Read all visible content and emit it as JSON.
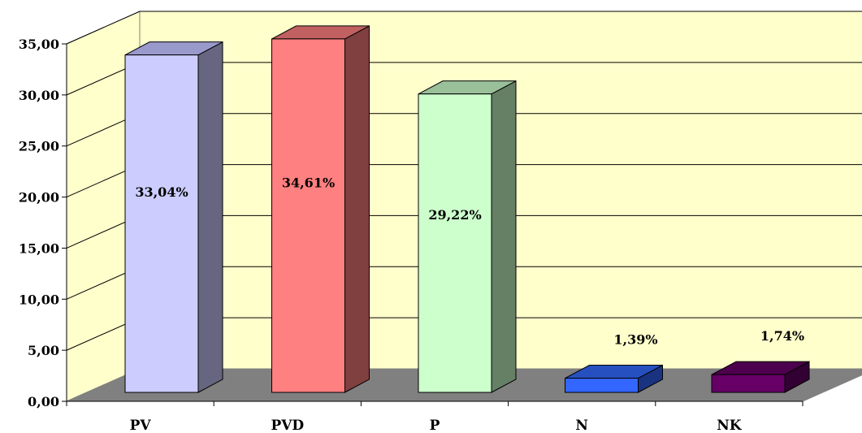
{
  "chart_data": {
    "type": "bar",
    "style": "3d-column",
    "categories": [
      "PV",
      "PVD",
      "P",
      "N",
      "NK"
    ],
    "values": [
      33.04,
      34.61,
      29.22,
      1.39,
      1.74
    ],
    "data_labels": [
      "33,04%",
      "34,61%",
      "29,22%",
      "1,39%",
      "1,74%"
    ],
    "label_inside": [
      true,
      true,
      true,
      false,
      false
    ],
    "ylim": [
      0,
      35
    ],
    "yticks": [
      "0,00",
      "5,00",
      "10,00",
      "15,00",
      "20,00",
      "25,00",
      "30,00",
      "35,00"
    ],
    "grid": true,
    "legend": "none",
    "colors": {
      "wall": "#ffffcc",
      "floor": "#808080",
      "grid": "#000000",
      "bars": [
        {
          "front": "#ccccff",
          "top": "#9999cc",
          "side": "#666680"
        },
        {
          "front": "#ff8080",
          "top": "#c06060",
          "side": "#804040"
        },
        {
          "front": "#ccffcc",
          "top": "#99c099",
          "side": "#668066"
        },
        {
          "front": "#3366ff",
          "top": "#2650c0",
          "side": "#1a3380"
        },
        {
          "front": "#660066",
          "top": "#4d004d",
          "side": "#330033"
        }
      ]
    }
  }
}
